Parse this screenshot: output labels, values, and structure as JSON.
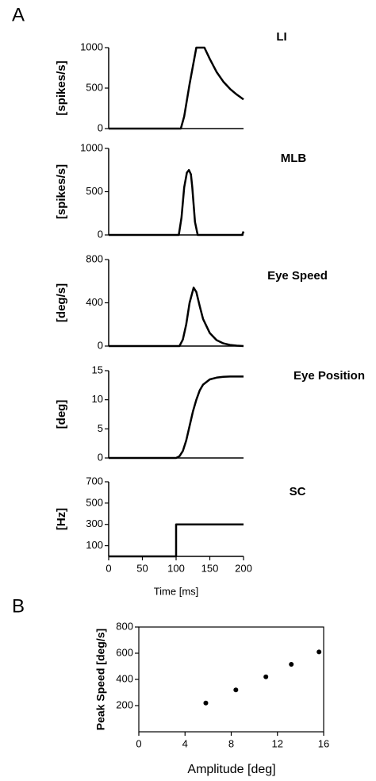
{
  "chart_data": [
    {
      "type": "line",
      "panel_label": "A",
      "title": "LI",
      "ylabel": "[spikes/s]",
      "xlim": [
        0,
        200
      ],
      "ylim": [
        0,
        1000
      ],
      "yticks": [
        0,
        500,
        1000
      ],
      "x": [
        0,
        107,
        112,
        120,
        130,
        142,
        150,
        160,
        170,
        180,
        190,
        200
      ],
      "values": [
        0,
        0,
        150,
        550,
        1000,
        1000,
        860,
        700,
        580,
        490,
        420,
        360
      ],
      "color": "#000000"
    },
    {
      "type": "line",
      "title": "MLB",
      "ylabel": "[spikes/s]",
      "xlim": [
        0,
        200
      ],
      "ylim": [
        0,
        1000
      ],
      "yticks": [
        0,
        500,
        1000
      ],
      "x": [
        0,
        104,
        108,
        112,
        116,
        119,
        122,
        124,
        126,
        128,
        132,
        198,
        200
      ],
      "values": [
        0,
        0,
        200,
        550,
        720,
        750,
        700,
        550,
        350,
        150,
        0,
        0,
        40
      ],
      "color": "#000000"
    },
    {
      "type": "line",
      "title": "Eye Speed",
      "ylabel": "[deg/s]",
      "xlim": [
        0,
        200
      ],
      "ylim": [
        0,
        800
      ],
      "yticks": [
        0,
        400,
        800
      ],
      "x": [
        0,
        105,
        110,
        115,
        120,
        126,
        130,
        135,
        140,
        150,
        160,
        170,
        180,
        190,
        200
      ],
      "values": [
        0,
        0,
        60,
        200,
        400,
        540,
        500,
        370,
        250,
        120,
        55,
        25,
        10,
        4,
        0
      ],
      "color": "#000000"
    },
    {
      "type": "line",
      "title": "Eye Position",
      "ylabel": "[deg]",
      "xlim": [
        0,
        200
      ],
      "ylim": [
        0,
        15
      ],
      "yticks": [
        0,
        5,
        10,
        15
      ],
      "x": [
        0,
        100,
        105,
        110,
        115,
        120,
        125,
        130,
        135,
        140,
        150,
        160,
        170,
        180,
        200
      ],
      "values": [
        0,
        0,
        0.3,
        1.2,
        3,
        5.5,
        8,
        10,
        11.6,
        12.6,
        13.5,
        13.8,
        13.95,
        14,
        14
      ],
      "color": "#000000"
    },
    {
      "type": "line",
      "title": "SC",
      "ylabel": "[Hz]",
      "xlabel": "Time [ms]",
      "xlim": [
        0,
        200
      ],
      "ylim": [
        0,
        700
      ],
      "yticks": [
        100,
        300,
        500,
        700
      ],
      "xticks": [
        0,
        50,
        100,
        150,
        200
      ],
      "x": [
        0,
        100,
        100,
        200
      ],
      "values": [
        0,
        0,
        300,
        300
      ],
      "color": "#000000"
    },
    {
      "type": "scatter",
      "panel_label": "B",
      "xlabel": "Amplitude [deg]",
      "ylabel": "Peak Speed [deg/s]",
      "xlim": [
        0,
        16
      ],
      "ylim": [
        0,
        800
      ],
      "xticks": [
        0,
        4,
        8,
        12,
        16
      ],
      "yticks": [
        200,
        400,
        600,
        800
      ],
      "x": [
        5.8,
        8.4,
        11,
        13.2,
        15.6
      ],
      "values": [
        220,
        320,
        420,
        515,
        610
      ],
      "color": "#000000"
    }
  ]
}
